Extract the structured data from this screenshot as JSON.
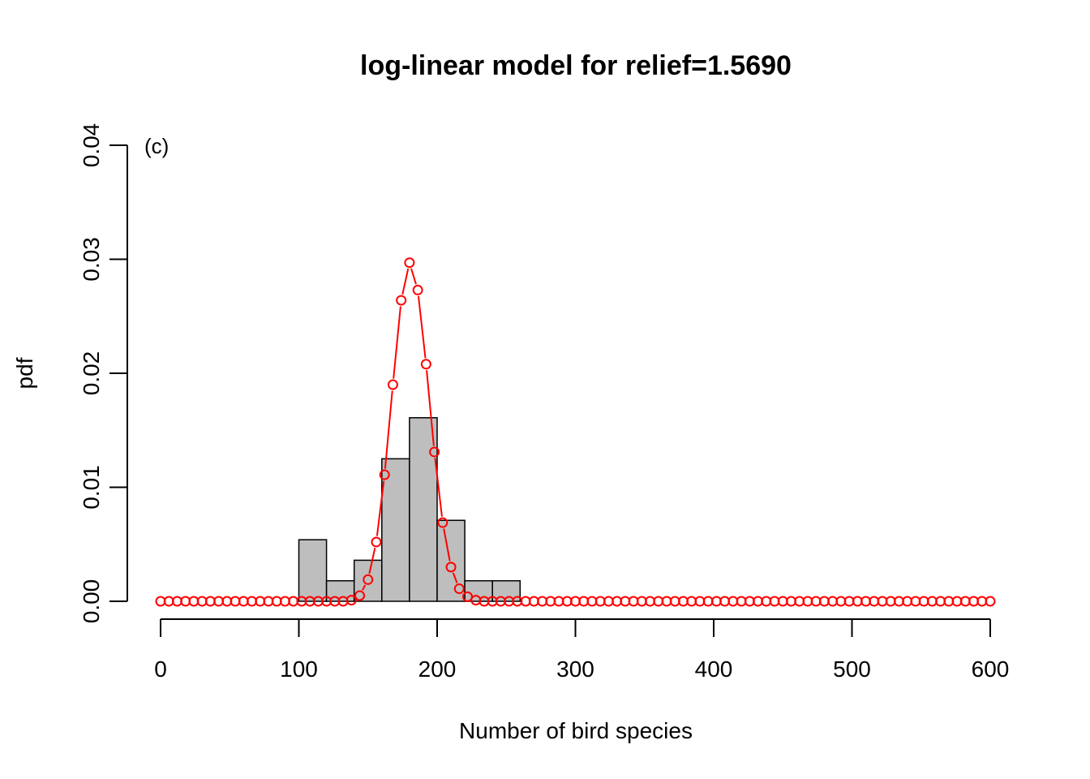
{
  "chart_data": {
    "type": "bar",
    "title": "log-linear model for relief=1.5690",
    "xlabel": "Number of bird species",
    "ylabel": "pdf",
    "panel_label": "(c)",
    "xlim": [
      0,
      600
    ],
    "ylim": [
      0,
      0.04
    ],
    "x_ticks": [
      0,
      100,
      200,
      300,
      400,
      500,
      600
    ],
    "x_tick_labels": [
      "0",
      "100",
      "200",
      "300",
      "400",
      "500",
      "600"
    ],
    "y_ticks": [
      0,
      0.01,
      0.02,
      0.03,
      0.04
    ],
    "y_tick_labels": [
      "0.00",
      "0.01",
      "0.02",
      "0.03",
      "0.04"
    ],
    "grid": false,
    "histogram": {
      "name": "observed",
      "color": "#bebebe",
      "bins": [
        {
          "start": 100,
          "end": 120,
          "value": 0.0054
        },
        {
          "start": 120,
          "end": 140,
          "value": 0.0018
        },
        {
          "start": 140,
          "end": 160,
          "value": 0.0036
        },
        {
          "start": 160,
          "end": 180,
          "value": 0.0125
        },
        {
          "start": 180,
          "end": 200,
          "value": 0.0161
        },
        {
          "start": 200,
          "end": 220,
          "value": 0.0071
        },
        {
          "start": 220,
          "end": 240,
          "value": 0.0018
        },
        {
          "start": 240,
          "end": 260,
          "value": 0.0018
        }
      ]
    },
    "fitted": {
      "name": "log-linear model",
      "color": "#ff0000",
      "x_start": 0,
      "x_step": 6,
      "x_end": 600,
      "peaks": [
        [
          138,
          0.0001
        ],
        [
          144,
          0.0005
        ],
        [
          150,
          0.0019
        ],
        [
          156,
          0.0052
        ],
        [
          162,
          0.0111
        ],
        [
          168,
          0.019
        ],
        [
          174,
          0.0264
        ],
        [
          180,
          0.0297
        ],
        [
          186,
          0.0273
        ],
        [
          192,
          0.0208
        ],
        [
          198,
          0.0131
        ],
        [
          204,
          0.0069
        ],
        [
          210,
          0.003
        ],
        [
          216,
          0.0011
        ],
        [
          222,
          0.0004
        ],
        [
          228,
          0.0001
        ]
      ]
    }
  }
}
